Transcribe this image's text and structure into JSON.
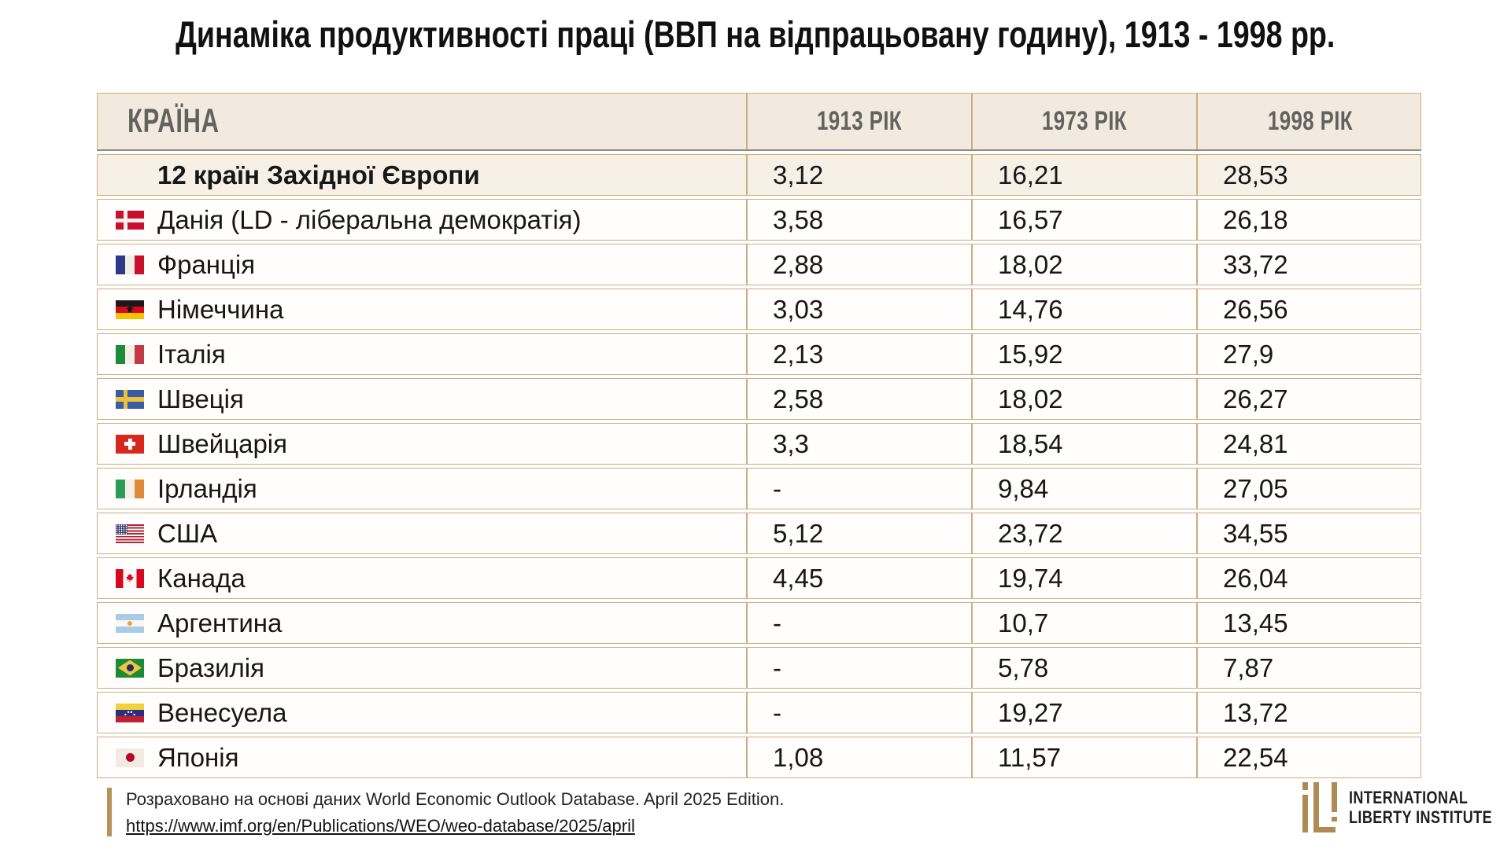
{
  "title": "Динаміка продуктивності праці (ВВП на відпрацьовану годину), 1913 - 1998 рр.",
  "table": {
    "headers": [
      "КРАЇНА",
      "1913 РІК",
      "1973 РІК",
      "1998 РІК"
    ],
    "rows": [
      {
        "country": "12 країн Західної Європи",
        "flag": "none",
        "bold": true,
        "v1913": "3,12",
        "v1973": "16,21",
        "v1998": "28,53"
      },
      {
        "country": "Данія (LD - ліберальна демократія)",
        "flag": "denmark",
        "bold": false,
        "v1913": "3,58",
        "v1973": "16,57",
        "v1998": "26,18"
      },
      {
        "country": "Франція",
        "flag": "france",
        "bold": false,
        "v1913": "2,88",
        "v1973": "18,02",
        "v1998": "33,72"
      },
      {
        "country": "Німеччина",
        "flag": "germany",
        "bold": false,
        "v1913": "3,03",
        "v1973": "14,76",
        "v1998": "26,56"
      },
      {
        "country": "Італія",
        "flag": "italy",
        "bold": false,
        "v1913": "2,13",
        "v1973": "15,92",
        "v1998": "27,9"
      },
      {
        "country": "Швеція",
        "flag": "sweden",
        "bold": false,
        "v1913": "2,58",
        "v1973": "18,02",
        "v1998": "26,27"
      },
      {
        "country": "Швейцарія",
        "flag": "switzerland",
        "bold": false,
        "v1913": "3,3",
        "v1973": "18,54",
        "v1998": "24,81"
      },
      {
        "country": "Ірландія",
        "flag": "ireland",
        "bold": false,
        "v1913": "-",
        "v1973": "9,84",
        "v1998": "27,05"
      },
      {
        "country": "США",
        "flag": "usa",
        "bold": false,
        "v1913": "5,12",
        "v1973": "23,72",
        "v1998": "34,55"
      },
      {
        "country": "Канада",
        "flag": "canada",
        "bold": false,
        "v1913": "4,45",
        "v1973": "19,74",
        "v1998": "26,04"
      },
      {
        "country": "Аргентина",
        "flag": "argentina",
        "bold": false,
        "v1913": "-",
        "v1973": "10,7",
        "v1998": "13,45"
      },
      {
        "country": "Бразилія",
        "flag": "brazil",
        "bold": false,
        "v1913": "-",
        "v1973": "5,78",
        "v1998": "7,87"
      },
      {
        "country": "Венесуела",
        "flag": "venezuela",
        "bold": false,
        "v1913": "-",
        "v1973": "19,27",
        "v1998": "13,72"
      },
      {
        "country": "Японія",
        "flag": "japan",
        "bold": false,
        "v1913": "1,08",
        "v1973": "11,57",
        "v1998": "22,54"
      }
    ]
  },
  "footer": {
    "source_text": "Розраховано на основі даних World Economic Outlook Database. April 2025 Edition.",
    "source_link": "https://www.imf.org/en/Publications/WEO/weo-database/2025/april"
  },
  "logo": {
    "line1": "INTERNATIONAL",
    "line2": "LIBERTY INSTITUTE"
  },
  "colors": {
    "table_border": "#cbae82",
    "header_bg": "#f2e9df",
    "first_row_bg": "#f7f0e7",
    "row_bg": "#fffefc",
    "header_underline": "#8f8b80",
    "logo_gold": "#b08a55",
    "header_text": "#63625f",
    "body_text": "#171715"
  }
}
